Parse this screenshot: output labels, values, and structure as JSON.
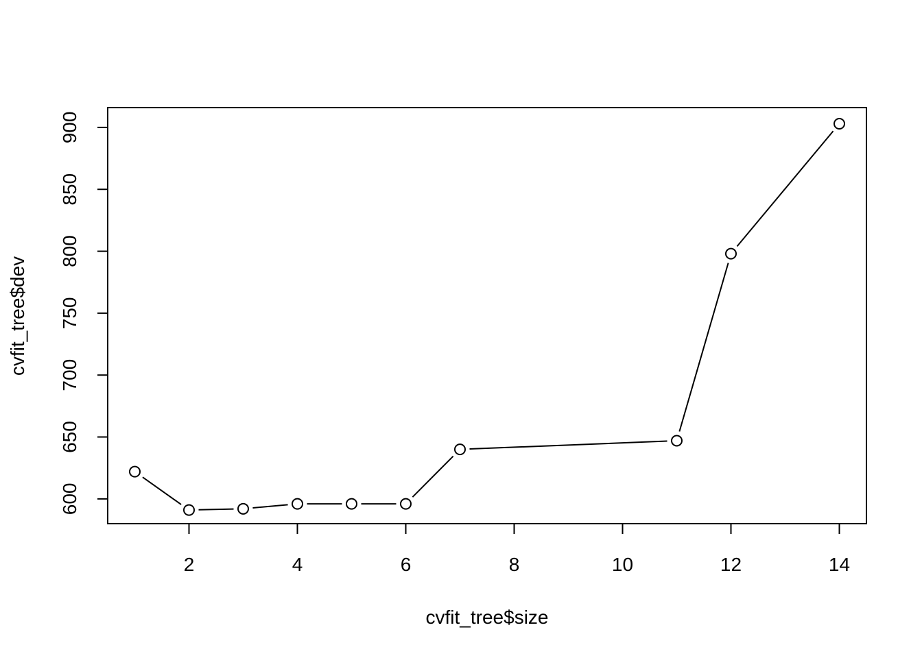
{
  "chart_data": {
    "type": "line",
    "title": "",
    "xlabel": "cvfit_tree$size",
    "ylabel": "cvfit_tree$dev",
    "x": [
      1,
      2,
      3,
      4,
      5,
      6,
      7,
      11,
      12,
      14
    ],
    "series": [
      {
        "values": [
          622,
          591,
          592,
          596,
          596,
          596,
          640,
          647,
          798,
          903
        ]
      }
    ],
    "xlim": [
      0.5,
      14.5
    ],
    "ylim": [
      580,
      916
    ],
    "x_ticks": [
      "2",
      "4",
      "6",
      "8",
      "10",
      "12",
      "14"
    ],
    "y_ticks": [
      "600",
      "650",
      "700",
      "750",
      "800",
      "850",
      "900"
    ],
    "markers": "open-circle",
    "line_color": "#000000",
    "grid": false,
    "legend": "none"
  }
}
